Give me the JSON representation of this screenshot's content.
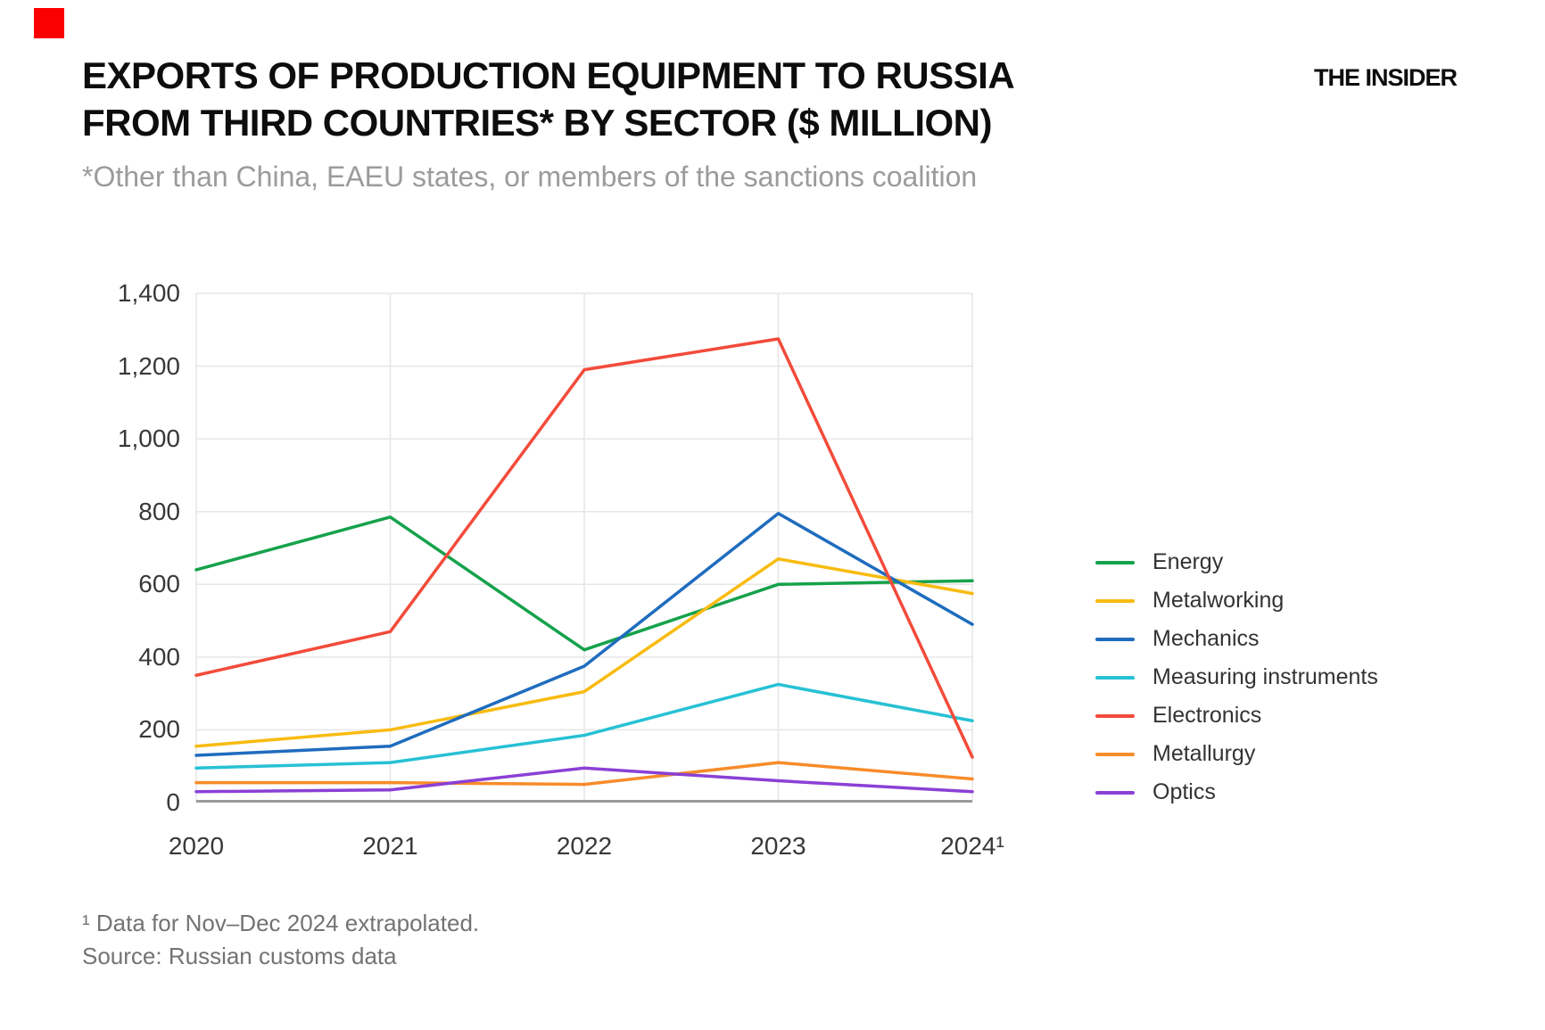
{
  "header": {
    "brand": "THE INSIDER",
    "brand_square_color": "#fb0000",
    "title_line1": "EXPORTS OF PRODUCTION EQUIPMENT TO RUSSIA",
    "title_line2": "FROM THIRD COUNTRIES* BY SECTOR ($ MILLION)",
    "subtitle": "*Other than China, EAEU states, or members of the sanctions coalition"
  },
  "chart_data": {
    "type": "line",
    "title": "Exports of production equipment to Russia from third countries by sector ($ million)",
    "x": [
      2020,
      2021,
      2022,
      2023,
      2024
    ],
    "x_tick_labels": [
      "2020",
      "2021",
      "2022",
      "2023",
      "2024¹"
    ],
    "ylim": [
      0,
      1400
    ],
    "y_tick_step": 200,
    "y_tick_labels": [
      "0",
      "200",
      "400",
      "600",
      "800",
      "1,000",
      "1,200",
      "1,400"
    ],
    "grid": true,
    "legend_position": "right",
    "series": [
      {
        "name": "Energy",
        "color": "#15a24b",
        "values": [
          640,
          785,
          420,
          600,
          610
        ]
      },
      {
        "name": "Metalworking",
        "color": "#f8bb10",
        "values": [
          155,
          200,
          305,
          670,
          575
        ]
      },
      {
        "name": "Mechanics",
        "color": "#1f6cbe",
        "values": [
          130,
          155,
          375,
          795,
          490
        ]
      },
      {
        "name": "Measuring instruments",
        "color": "#27c1d4",
        "values": [
          95,
          110,
          185,
          325,
          225
        ]
      },
      {
        "name": "Electronics",
        "color": "#f34b3b",
        "values": [
          350,
          470,
          1190,
          1275,
          125
        ]
      },
      {
        "name": "Metallurgy",
        "color": "#f78c2a",
        "values": [
          55,
          55,
          50,
          110,
          65
        ]
      },
      {
        "name": "Optics",
        "color": "#8b40d5",
        "values": [
          30,
          35,
          95,
          60,
          30
        ]
      }
    ],
    "style": {
      "gridline_color": "#e6e6e6",
      "axis_color": "#9b9b9b",
      "line_width": 3.5
    }
  },
  "footer": {
    "note": "¹ Data for Nov–Dec 2024 extrapolated.",
    "source": "Source: Russian customs data"
  }
}
